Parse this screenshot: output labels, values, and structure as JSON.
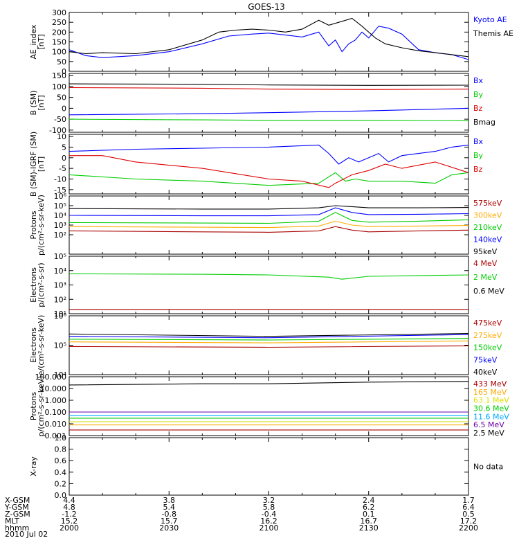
{
  "title": "GOES-13",
  "date_label": "2010 Jul 02",
  "colors": {
    "black": "#000000",
    "blue": "#0000ff",
    "red": "#dd0000",
    "green": "#00cc00",
    "orange": "#ffaa00",
    "yellow": "#dddd00",
    "cyan": "#00aaff",
    "purple": "#6a00a8",
    "darkred": "#aa0000"
  },
  "ephemeris": {
    "row_labels": [
      "X-GSM",
      "Y-GSM",
      "Z-GSM",
      "MLT",
      "hhmm"
    ],
    "columns": [
      {
        "values": [
          "4.4",
          "4.8",
          "-1.2",
          "15.2",
          "2000"
        ]
      },
      {
        "values": [
          "3.8",
          "5.4",
          "-0.8",
          "15.7",
          "2030"
        ]
      },
      {
        "values": [
          "3.2",
          "5.8",
          "-0.4",
          "16.2",
          "2100"
        ]
      },
      {
        "values": [
          "2.4",
          "6.2",
          "0.1",
          "16.7",
          "2130"
        ]
      },
      {
        "values": [
          "1.7",
          "6.4",
          "0.5",
          "17.2",
          "2200"
        ]
      }
    ]
  },
  "chart_data": [
    {
      "id": "ae",
      "type": "line",
      "ylabel": [
        "AE_index",
        "[nT]"
      ],
      "yscale": "linear",
      "ylim": [
        0,
        300
      ],
      "yticks": [
        0,
        50,
        100,
        150,
        200,
        250,
        300
      ],
      "ytick_labels": [
        "0",
        "50",
        "100",
        "150",
        "200",
        "250",
        "300"
      ],
      "x_hhmm": [
        2000,
        2200
      ],
      "series": [
        {
          "name": "Kyoto AE",
          "color": "blue",
          "x": [
            2000,
            2005,
            2010,
            2020,
            2030,
            2040,
            2048,
            2055,
            2100,
            2105,
            2110,
            2115,
            2118,
            2120,
            2122,
            2124,
            2126,
            2128,
            2130,
            2133,
            2136,
            2140,
            2145,
            2150,
            2155,
            2200
          ],
          "y": [
            110,
            80,
            70,
            80,
            100,
            140,
            180,
            190,
            195,
            185,
            175,
            200,
            130,
            160,
            100,
            140,
            160,
            200,
            170,
            230,
            220,
            190,
            110,
            95,
            85,
            60
          ]
        },
        {
          "name": "Themis AE",
          "color": "black",
          "x": [
            2000,
            2005,
            2010,
            2020,
            2030,
            2040,
            2045,
            2050,
            2055,
            2100,
            2105,
            2110,
            2115,
            2118,
            2122,
            2125,
            2128,
            2132,
            2135,
            2140,
            2145,
            2150,
            2155,
            2200
          ],
          "y": [
            100,
            90,
            95,
            90,
            110,
            160,
            200,
            210,
            215,
            210,
            200,
            215,
            260,
            235,
            255,
            270,
            230,
            170,
            140,
            120,
            105,
            95,
            85,
            75
          ]
        }
      ]
    },
    {
      "id": "b",
      "type": "line",
      "ylabel": [
        "B (SM)",
        "[nT]"
      ],
      "yscale": "linear",
      "ylim": [
        -110,
        160
      ],
      "yticks": [
        -100,
        -50,
        0,
        50,
        100,
        150
      ],
      "ytick_labels": [
        "-100",
        "-50",
        "0",
        "50",
        "100",
        "150"
      ],
      "x_hhmm": [
        2000,
        2200
      ],
      "series": [
        {
          "name": "Bx",
          "color": "blue",
          "x": [
            2000,
            2040,
            2100,
            2130,
            2200
          ],
          "y": [
            -30,
            -25,
            -20,
            -12,
            0
          ]
        },
        {
          "name": "By",
          "color": "green",
          "x": [
            2000,
            2040,
            2100,
            2130,
            2200
          ],
          "y": [
            -50,
            -53,
            -55,
            -55,
            -57
          ]
        },
        {
          "name": "Bz",
          "color": "red",
          "x": [
            2000,
            2040,
            2100,
            2130,
            2200
          ],
          "y": [
            95,
            92,
            88,
            86,
            88
          ]
        },
        {
          "name": "Bmag",
          "color": "black",
          "x": [
            2000,
            2040,
            2100,
            2130,
            2200
          ],
          "y": [
            112,
            110,
            107,
            105,
            106
          ]
        }
      ]
    },
    {
      "id": "db",
      "type": "line",
      "ylabel": [
        "B (SM)-IGRF (SM)",
        "[nT]"
      ],
      "yscale": "linear",
      "ylim": [
        -17,
        11
      ],
      "yticks": [
        -15,
        -10,
        -5,
        0,
        5,
        10
      ],
      "ytick_labels": [
        "-15",
        "-10",
        "-5",
        "0",
        "5",
        "10"
      ],
      "x_hhmm": [
        2000,
        2200
      ],
      "series": [
        {
          "name": "Bx",
          "color": "blue",
          "x": [
            2000,
            2020,
            2040,
            2060,
            2115,
            2118,
            2121,
            2124,
            2127,
            2130,
            2133,
            2136,
            2140,
            2145,
            2150,
            2155,
            2200
          ],
          "y": [
            3,
            4,
            4.5,
            5,
            6,
            2,
            -3,
            0,
            -2,
            0,
            2,
            -2,
            1,
            2,
            3,
            5,
            6
          ]
        },
        {
          "name": "By",
          "color": "green",
          "x": [
            2000,
            2020,
            2040,
            2100,
            2115,
            2120,
            2123,
            2126,
            2130,
            2140,
            2150,
            2155,
            2200
          ],
          "y": [
            -8,
            -10,
            -11,
            -13,
            -12,
            -7,
            -11,
            -10,
            -11,
            -11,
            -12,
            -8,
            -7
          ]
        },
        {
          "name": "Bz",
          "color": "red",
          "x": [
            2000,
            2010,
            2020,
            2040,
            2100,
            2110,
            2118,
            2120,
            2125,
            2130,
            2135,
            2140,
            2150,
            2200
          ],
          "y": [
            1,
            1,
            -2,
            -5,
            -10,
            -11,
            -14,
            -12,
            -8,
            -6,
            -3,
            -5,
            -2,
            -7
          ]
        }
      ]
    },
    {
      "id": "protons",
      "type": "line",
      "ylabel": [
        "Protons",
        "p/(cm²-s-sr-keV)"
      ],
      "yscale": "log",
      "ylim": [
        1,
        1000000
      ],
      "yticks": [
        100,
        1000,
        10000,
        100000,
        1000000
      ],
      "ytick_labels": [
        "10²",
        "10³",
        "10⁴",
        "10⁵",
        "10⁶"
      ],
      "x_hhmm": [
        2000,
        2200
      ],
      "series": [
        {
          "name": "575keV",
          "color": "darkred",
          "x": [
            2000,
            2040,
            2100,
            2115,
            2120,
            2125,
            2130,
            2145,
            2200
          ],
          "y": [
            250,
            200,
            180,
            250,
            700,
            300,
            200,
            250,
            300
          ]
        },
        {
          "name": "300keV",
          "color": "orange",
          "x": [
            2000,
            2040,
            2100,
            2115,
            2120,
            2125,
            2130,
            2145,
            2200
          ],
          "y": [
            700,
            600,
            550,
            800,
            2500,
            1000,
            700,
            800,
            900
          ]
        },
        {
          "name": "210keV",
          "color": "green",
          "x": [
            2000,
            2040,
            2100,
            2115,
            2120,
            2125,
            2130,
            2145,
            2200
          ],
          "y": [
            1800,
            1600,
            1500,
            2500,
            20000,
            3000,
            2000,
            2500,
            3500
          ]
        },
        {
          "name": "140keV",
          "color": "blue",
          "x": [
            2000,
            2040,
            2100,
            2115,
            2120,
            2125,
            2130,
            2145,
            2200
          ],
          "y": [
            10000,
            9000,
            9000,
            12000,
            60000,
            20000,
            12000,
            13000,
            15000
          ]
        },
        {
          "name": "95keV",
          "color": "black",
          "x": [
            2000,
            2040,
            2100,
            2115,
            2120,
            2125,
            2130,
            2145,
            2200
          ],
          "y": [
            50000,
            45000,
            45000,
            60000,
            100000,
            80000,
            60000,
            60000,
            65000
          ]
        }
      ]
    },
    {
      "id": "electrons_mev",
      "type": "line",
      "ylabel": [
        "Electrons",
        "p/(cm²-s-sr)"
      ],
      "yscale": "log",
      "ylim": [
        10,
        100000
      ],
      "yticks": [
        10,
        100,
        1000,
        10000,
        100000
      ],
      "ytick_labels": [
        "10¹",
        "10²",
        "10³",
        "10⁴",
        "10⁵"
      ],
      "x_hhmm": [
        2000,
        2200
      ],
      "series": [
        {
          "name": "4 MeV",
          "color": "darkred",
          "x": [
            2000,
            2100,
            2200
          ],
          "y": [
            20,
            20,
            20
          ]
        },
        {
          "name": "2 MeV",
          "color": "green",
          "x": [
            2000,
            2040,
            2100,
            2118,
            2122,
            2130,
            2200
          ],
          "y": [
            6000,
            5500,
            5000,
            3500,
            2500,
            4000,
            5000
          ]
        },
        {
          "name": "0.6 MeV",
          "color": "black",
          "x": [
            2000,
            2100,
            2200
          ],
          "y": [
            100000,
            100000,
            100000
          ]
        }
      ]
    },
    {
      "id": "electrons_kev",
      "type": "line",
      "ylabel": [
        "Electrons",
        "e/(cm²-s-sr-keV)"
      ],
      "yscale": "log",
      "ylim": [
        10000,
        1000000
      ],
      "yticks": [
        10000,
        100000,
        1000000
      ],
      "ytick_labels": [
        "10⁴",
        "10⁵",
        "10⁶"
      ],
      "x_hhmm": [
        2000,
        2200
      ],
      "series": [
        {
          "name": "475keV",
          "color": "darkred",
          "x": [
            2000,
            2100,
            2200
          ],
          "y": [
            90000,
            85000,
            95000
          ]
        },
        {
          "name": "275keV",
          "color": "orange",
          "x": [
            2000,
            2100,
            2200
          ],
          "y": [
            130000,
            120000,
            140000
          ]
        },
        {
          "name": "150keV",
          "color": "green",
          "x": [
            2000,
            2100,
            2200
          ],
          "y": [
            160000,
            150000,
            170000
          ]
        },
        {
          "name": "75keV",
          "color": "blue",
          "x": [
            2000,
            2100,
            2200
          ],
          "y": [
            200000,
            180000,
            230000
          ]
        },
        {
          "name": "40keV",
          "color": "black",
          "x": [
            2000,
            2100,
            2200
          ],
          "y": [
            240000,
            200000,
            250000
          ]
        }
      ]
    },
    {
      "id": "protons_mev",
      "type": "line",
      "ylabel": [
        "Protons",
        "p/(cm²-s-sr-keV)"
      ],
      "yscale": "log",
      "ylim": [
        0.001,
        100
      ],
      "yticks": [
        0.001,
        0.01,
        0.1,
        1,
        10,
        100
      ],
      "ytick_labels": [
        "0.001",
        "0.010",
        "0.100",
        "1.000",
        "10.000",
        "100.000"
      ],
      "x_hhmm": [
        2000,
        2200
      ],
      "series": [
        {
          "name": "433 MeV",
          "color": "darkred",
          "x": [
            2000,
            2100,
            2200
          ],
          "y": [
            0.003,
            0.003,
            0.003
          ]
        },
        {
          "name": "165 MeV",
          "color": "orange",
          "x": [
            2000,
            2100,
            2200
          ],
          "y": [
            0.008,
            0.008,
            0.008
          ]
        },
        {
          "name": "63.1 MeV",
          "color": "yellow",
          "x": [
            2000,
            2100,
            2200
          ],
          "y": [
            0.015,
            0.015,
            0.015
          ]
        },
        {
          "name": "30.6 MeV",
          "color": "green",
          "x": [
            2000,
            2100,
            2200
          ],
          "y": [
            0.03,
            0.03,
            0.03
          ]
        },
        {
          "name": "11.6 MeV",
          "color": "cyan",
          "x": [
            2000,
            2100,
            2200
          ],
          "y": [
            0.05,
            0.05,
            0.05
          ]
        },
        {
          "name": "6.5 MeV",
          "color": "purple",
          "x": [
            2000,
            2100,
            2200
          ],
          "y": [
            0.1,
            0.1,
            0.1
          ]
        },
        {
          "name": "2.5 MeV",
          "color": "black",
          "x": [
            2000,
            2040,
            2100,
            2130,
            2200
          ],
          "y": [
            20,
            25,
            25,
            35,
            40
          ]
        }
      ]
    },
    {
      "id": "xray",
      "type": "line",
      "ylabel": [
        "X-ray",
        ""
      ],
      "yscale": "linear",
      "ylim": [
        0,
        1
      ],
      "yticks": [
        0,
        0.2,
        0.4,
        0.6,
        0.8,
        1.0
      ],
      "ytick_labels": [
        "0.0",
        "0.2",
        "0.4",
        "0.6",
        "0.8",
        "1.0"
      ],
      "x_hhmm": [
        2000,
        2200
      ],
      "annotation": "No data",
      "series": []
    }
  ]
}
